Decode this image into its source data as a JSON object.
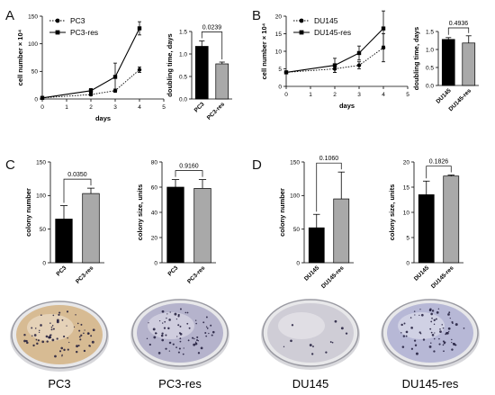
{
  "panels": {
    "A": "A",
    "B": "B",
    "C": "C",
    "D": "D"
  },
  "chart_data": [
    {
      "id": "A-growth",
      "type": "line",
      "xlabel": "days",
      "ylabel": "cell number × 10⁴",
      "xlim": [
        0,
        5
      ],
      "ylim": [
        0,
        150
      ],
      "xticks": [
        "0",
        "1",
        "2",
        "3",
        "4",
        "5"
      ],
      "yticks": [
        "0",
        "50",
        "100",
        "150"
      ],
      "legend": "top-left",
      "series": [
        {
          "name": "PC3",
          "style": "dotted",
          "x": [
            0,
            2,
            3,
            4
          ],
          "y": [
            2,
            8,
            15,
            53
          ],
          "err": [
            1,
            2,
            3,
            5
          ]
        },
        {
          "name": "PC3-res",
          "style": "solid",
          "x": [
            0,
            2,
            3,
            4
          ],
          "y": [
            2,
            15,
            40,
            128
          ],
          "err": [
            1,
            4,
            25,
            12
          ]
        }
      ]
    },
    {
      "id": "A-doubling",
      "type": "bar",
      "ylabel": "doubling time, days",
      "ylim": [
        0,
        1.5
      ],
      "yticks": [
        "0.0",
        "0.5",
        "1.0",
        "1.5"
      ],
      "categories": [
        "PC3",
        "PC3-res"
      ],
      "values": [
        1.17,
        0.78
      ],
      "err": [
        0.12,
        0.04
      ],
      "colors": [
        "#000000",
        "#a9a9a9"
      ],
      "pvalue": "0.0239"
    },
    {
      "id": "B-growth",
      "type": "line",
      "xlabel": "days",
      "ylabel": "cell number × 10⁴",
      "xlim": [
        0,
        5
      ],
      "ylim": [
        0,
        20
      ],
      "xticks": [
        "0",
        "1",
        "2",
        "3",
        "4",
        "5"
      ],
      "yticks": [
        "0",
        "5",
        "10",
        "15",
        "20"
      ],
      "legend": "top-left",
      "series": [
        {
          "name": "DU145",
          "style": "dotted",
          "x": [
            0,
            2,
            3,
            4
          ],
          "y": [
            4,
            5,
            6,
            11
          ],
          "err": [
            0.3,
            1,
            1,
            4
          ]
        },
        {
          "name": "DU145-res",
          "style": "solid",
          "x": [
            0,
            2,
            3,
            4
          ],
          "y": [
            4,
            6,
            9.5,
            16.5
          ],
          "err": [
            0.3,
            2,
            2,
            5
          ]
        }
      ]
    },
    {
      "id": "B-doubling",
      "type": "bar",
      "ylabel": "doubling time, days",
      "ylim": [
        0,
        1.5
      ],
      "yticks": [
        "0.0",
        "0.5",
        "1.0",
        "1.5"
      ],
      "categories": [
        "DU145",
        "DU145-res"
      ],
      "values": [
        1.28,
        1.18
      ],
      "err": [
        0.05,
        0.2
      ],
      "colors": [
        "#000000",
        "#a9a9a9"
      ],
      "pvalue": "0.4936"
    },
    {
      "id": "C-colony-number",
      "type": "bar",
      "ylabel": "colony number",
      "ylim": [
        0,
        150
      ],
      "yticks": [
        "0",
        "50",
        "100",
        "150"
      ],
      "categories": [
        "PC3",
        "PC3-res"
      ],
      "values": [
        65,
        103
      ],
      "err": [
        20,
        8
      ],
      "colors": [
        "#000000",
        "#a9a9a9"
      ],
      "pvalue": "0.0350"
    },
    {
      "id": "C-colony-size",
      "type": "bar",
      "ylabel": "colony size, units",
      "ylim": [
        0,
        80
      ],
      "yticks": [
        "0",
        "20",
        "40",
        "60",
        "80"
      ],
      "categories": [
        "PC3",
        "PC3-res"
      ],
      "values": [
        60,
        59
      ],
      "err": [
        6,
        7
      ],
      "colors": [
        "#000000",
        "#a9a9a9"
      ],
      "pvalue": "0.9160"
    },
    {
      "id": "D-colony-number",
      "type": "bar",
      "ylabel": "colony number",
      "ylim": [
        0,
        150
      ],
      "yticks": [
        "0",
        "50",
        "100",
        "150"
      ],
      "categories": [
        "DU145",
        "DU145-res"
      ],
      "values": [
        52,
        95
      ],
      "err": [
        20,
        40
      ],
      "colors": [
        "#000000",
        "#a9a9a9"
      ],
      "pvalue": "0.1060"
    },
    {
      "id": "D-colony-size",
      "type": "bar",
      "ylabel": "colony size, units",
      "ylim": [
        0,
        20
      ],
      "yticks": [
        "0",
        "5",
        "10",
        "15",
        "20"
      ],
      "categories": [
        "DU145",
        "DU145-res"
      ],
      "values": [
        13.5,
        17.2
      ],
      "err": [
        2.7,
        0.2
      ],
      "colors": [
        "#000000",
        "#a9a9a9"
      ],
      "pvalue": "0.1826"
    }
  ],
  "dishes": [
    {
      "label": "PC3",
      "tint": "#c9964a"
    },
    {
      "label": "PC3-res",
      "tint": "#8b86b3"
    },
    {
      "label": "DU145",
      "tint": "#b9b6c4"
    },
    {
      "label": "DU145-res",
      "tint": "#8e8fc4"
    }
  ]
}
